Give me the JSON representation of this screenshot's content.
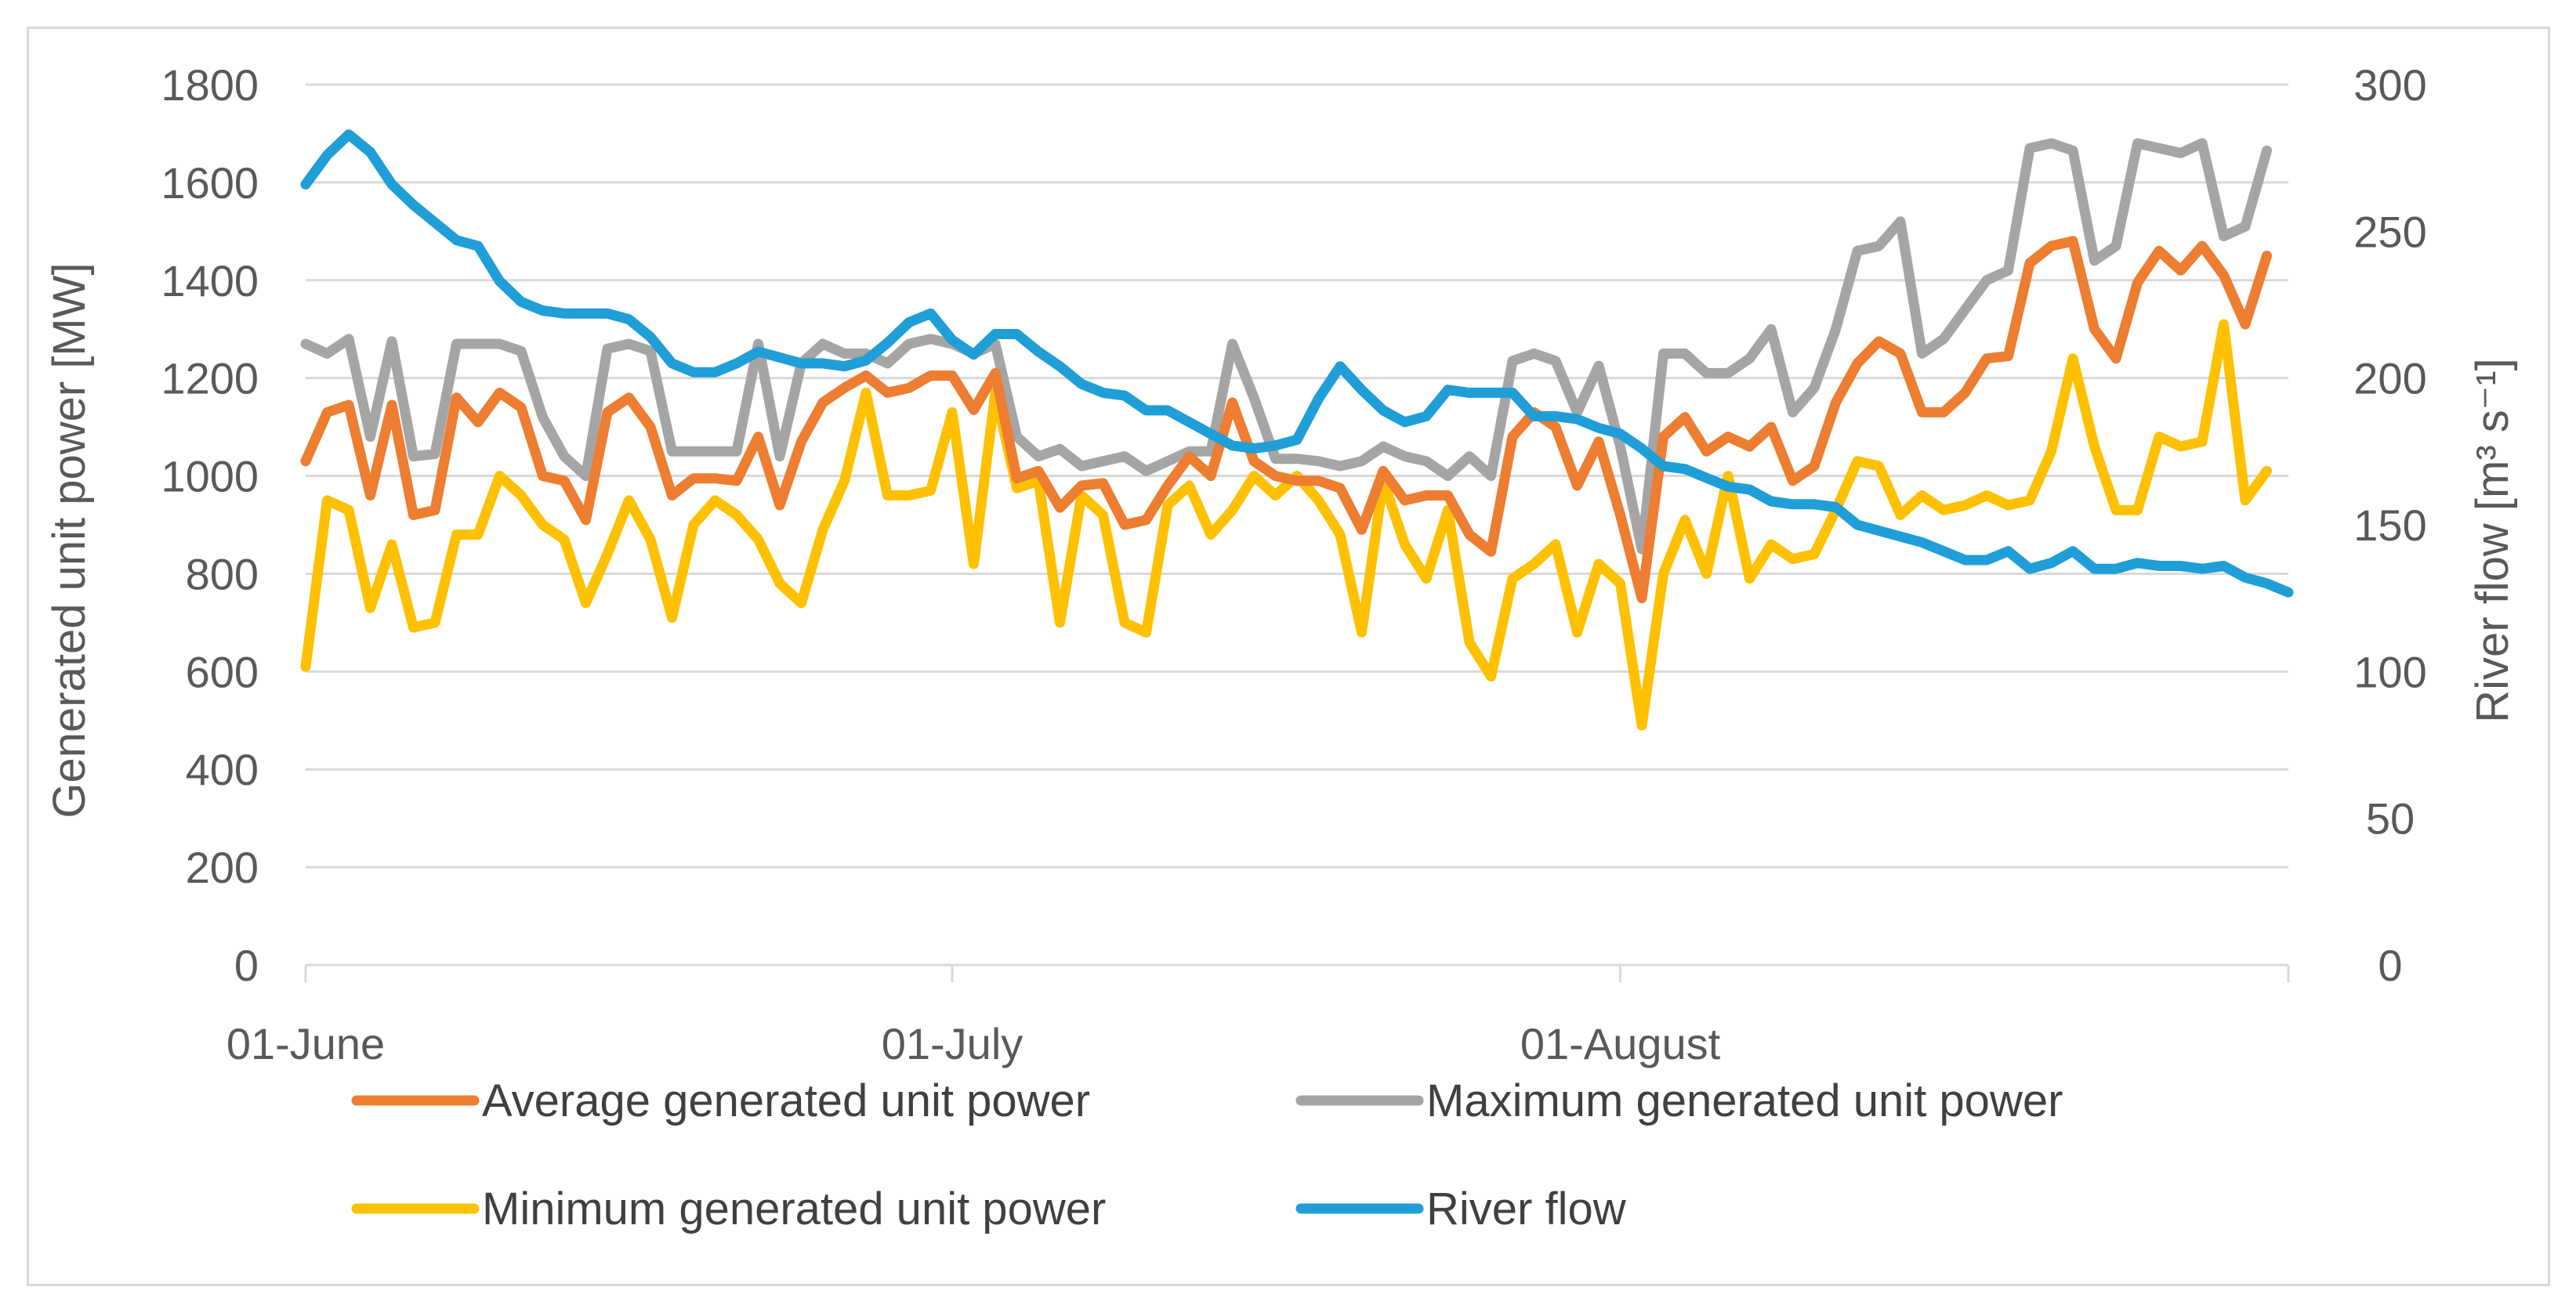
{
  "chart_data": {
    "type": "line",
    "title": "",
    "xlabel": "",
    "ylabel": "Generated unit power [MW]",
    "y2label": "River flow [m³ s⁻¹]",
    "ylim": [
      0,
      1800
    ],
    "y2lim": [
      0,
      300
    ],
    "yticks": [
      "0",
      "200",
      "400",
      "600",
      "800",
      "1000",
      "1200",
      "1400",
      "1600",
      "1800"
    ],
    "y2ticks": [
      "0",
      "50",
      "100",
      "150",
      "200",
      "250",
      "300"
    ],
    "xtick_labels": [
      {
        "day": 0,
        "label": "01-June"
      },
      {
        "day": 30,
        "label": "01-July"
      },
      {
        "day": 61,
        "label": "01-August"
      }
    ],
    "x_days": 93,
    "grid": true,
    "legend_position": "bottom",
    "series": [
      {
        "name": "Average generated unit power",
        "axis": "left",
        "color": "#ed7d31",
        "values": [
          1030,
          1130,
          1145,
          960,
          1145,
          920,
          930,
          1160,
          1110,
          1170,
          1140,
          1000,
          990,
          910,
          1130,
          1160,
          1100,
          960,
          995,
          995,
          990,
          1080,
          940,
          1070,
          1150,
          1180,
          1205,
          1170,
          1180,
          1205,
          1205,
          1135,
          1210,
          995,
          1010,
          935,
          980,
          985,
          900,
          910,
          980,
          1040,
          1000,
          1150,
          1030,
          1000,
          990,
          990,
          975,
          890,
          1010,
          950,
          960,
          960,
          880,
          845,
          1080,
          1130,
          1100,
          980,
          1070,
          920,
          750,
          1080,
          1120,
          1050,
          1080,
          1060,
          1100,
          990,
          1020,
          1150,
          1230,
          1275,
          1250,
          1130,
          1130,
          1170,
          1240,
          1245,
          1435,
          1470,
          1480,
          1300,
          1240,
          1395,
          1460,
          1420,
          1470,
          1410,
          1310,
          1450
        ]
      },
      {
        "name": "Maximum generated unit power",
        "axis": "left",
        "color": "#a5a5a5",
        "values": [
          1270,
          1250,
          1280,
          1080,
          1275,
          1040,
          1045,
          1270,
          1270,
          1270,
          1255,
          1120,
          1040,
          1000,
          1260,
          1270,
          1255,
          1050,
          1050,
          1050,
          1050,
          1270,
          1040,
          1230,
          1270,
          1250,
          1250,
          1230,
          1270,
          1280,
          1270,
          1250,
          1270,
          1080,
          1040,
          1055,
          1020,
          1030,
          1040,
          1010,
          1030,
          1050,
          1050,
          1270,
          1160,
          1035,
          1035,
          1030,
          1020,
          1030,
          1060,
          1040,
          1030,
          1000,
          1040,
          1000,
          1235,
          1250,
          1235,
          1130,
          1225,
          1060,
          850,
          1250,
          1250,
          1210,
          1210,
          1240,
          1300,
          1130,
          1180,
          1300,
          1460,
          1470,
          1520,
          1250,
          1280,
          1340,
          1400,
          1420,
          1670,
          1680,
          1665,
          1440,
          1470,
          1680,
          1670,
          1660,
          1680,
          1490,
          1510,
          1665
        ]
      },
      {
        "name": "Minimum generated unit power",
        "axis": "left",
        "color": "#ffc000",
        "values": [
          610,
          950,
          930,
          730,
          860,
          690,
          700,
          880,
          880,
          1000,
          960,
          900,
          870,
          740,
          840,
          950,
          870,
          710,
          900,
          950,
          920,
          870,
          780,
          740,
          890,
          990,
          1170,
          960,
          960,
          970,
          1130,
          820,
          1170,
          975,
          990,
          700,
          960,
          920,
          700,
          680,
          940,
          980,
          880,
          930,
          1000,
          960,
          1000,
          950,
          880,
          680,
          990,
          860,
          790,
          930,
          660,
          590,
          790,
          820,
          860,
          680,
          820,
          780,
          490,
          800,
          910,
          800,
          1000,
          790,
          860,
          830,
          840,
          930,
          1030,
          1020,
          920,
          960,
          930,
          940,
          960,
          940,
          950,
          1050,
          1240,
          1060,
          930,
          930,
          1080,
          1060,
          1070,
          1310,
          950,
          1010
        ]
      },
      {
        "name": "River flow",
        "axis": "right",
        "color": "#1f9ed8",
        "values": [
          266,
          276,
          283,
          277,
          266,
          259,
          253,
          247,
          245,
          233,
          226,
          223,
          222,
          222,
          222,
          220,
          214,
          205,
          202,
          202,
          205,
          209,
          207,
          205,
          205,
          204,
          206,
          212,
          219,
          222,
          213,
          208,
          215,
          215,
          209,
          204,
          198,
          195,
          194,
          189,
          189,
          185,
          181,
          177,
          176,
          177,
          179,
          193,
          204,
          196,
          189,
          185,
          187,
          196,
          195,
          195,
          195,
          187,
          187,
          186,
          183,
          181,
          176,
          170,
          169,
          166,
          163,
          162,
          158,
          157,
          157,
          156,
          150,
          148,
          146,
          144,
          141,
          138,
          138,
          141,
          135,
          137,
          141,
          135,
          135,
          137,
          136,
          136,
          135,
          136,
          132,
          130,
          127
        ]
      }
    ]
  }
}
